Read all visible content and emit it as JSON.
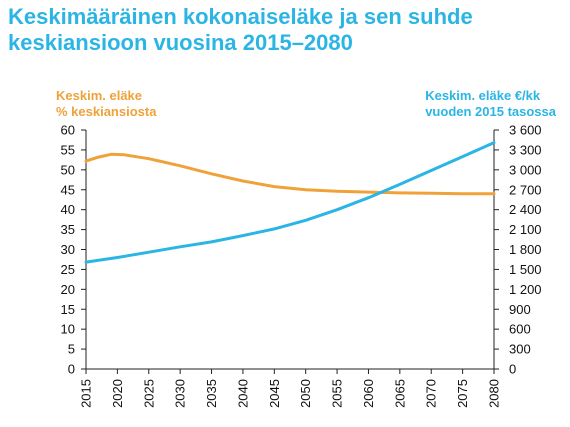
{
  "title": {
    "line1": "Keskimääräinen kokonaiseläke ja sen suhde",
    "line2": "keskiansioon vuosina 2015–2080"
  },
  "colors": {
    "title": "#2bb5e4",
    "ratio_series": "#f0a23a",
    "pension_series": "#2bb5e4"
  },
  "chart_data": {
    "type": "line",
    "title": "Keskimääräinen kokonaiseläke ja sen suhde keskiansioon vuosina 2015–2080",
    "grid": false,
    "x_ticks": [
      "2015",
      "2020",
      "2025",
      "2030",
      "2035",
      "2040",
      "2045",
      "2050",
      "2055",
      "2060",
      "2065",
      "2070",
      "2075",
      "2080"
    ],
    "xlim": [
      2015,
      2080
    ],
    "y_left": {
      "label_lines": [
        "Keskim. eläke",
        "% keskiansiosta"
      ],
      "ticks": [
        "0",
        "5",
        "10",
        "15",
        "20",
        "25",
        "30",
        "35",
        "40",
        "45",
        "50",
        "55",
        "60"
      ],
      "ylim": [
        0,
        60
      ]
    },
    "y_right": {
      "label_lines": [
        "Keskim. eläke €/kk",
        "vuoden 2015 tasossa"
      ],
      "ticks": [
        "0",
        "300",
        "600",
        "900",
        "1 200",
        "1 500",
        "1 800",
        "2 100",
        "2 400",
        "2 700",
        "3 000",
        "3 300",
        "3 600"
      ],
      "ylim": [
        0,
        3600
      ]
    },
    "series": [
      {
        "axis": "left",
        "x": [
          2015,
          2017,
          2019,
          2021,
          2023,
          2025,
          2027,
          2030,
          2035,
          2040,
          2045,
          2050,
          2055,
          2060,
          2065,
          2070,
          2075,
          2080
        ],
        "values": [
          52.2,
          53.2,
          53.9,
          53.8,
          53.3,
          52.8,
          52.1,
          51.0,
          49.0,
          47.2,
          45.8,
          45.0,
          44.6,
          44.4,
          44.2,
          44.1,
          44.0,
          44.0
        ]
      },
      {
        "axis": "right",
        "x": [
          2015,
          2020,
          2025,
          2030,
          2035,
          2040,
          2045,
          2050,
          2055,
          2060,
          2065,
          2070,
          2075,
          2080
        ],
        "values": [
          1610,
          1680,
          1760,
          1840,
          1915,
          2010,
          2110,
          2240,
          2400,
          2580,
          2780,
          2990,
          3200,
          3410
        ]
      }
    ]
  }
}
